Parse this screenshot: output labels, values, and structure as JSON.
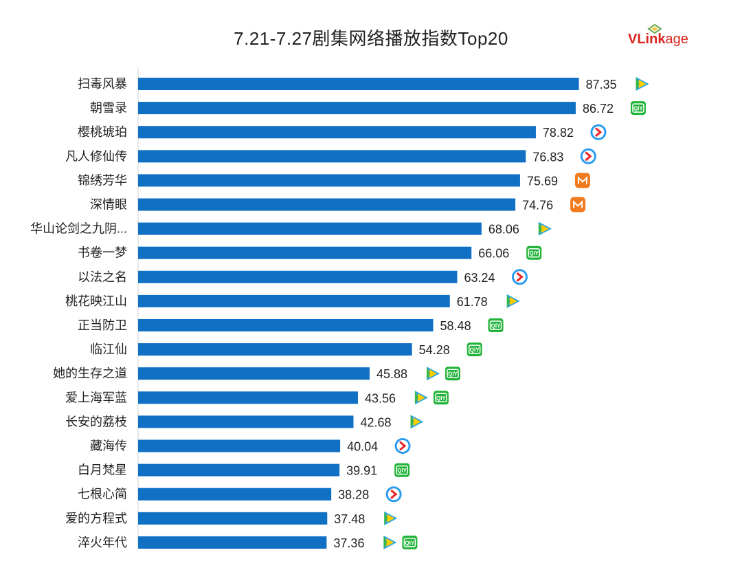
{
  "title": "7.21-7.27剧集网络播放指数Top20",
  "logo": {
    "text_v": "VLink",
    "text_age": "age"
  },
  "colors": {
    "bar": "#1070c4",
    "axis": "#d0d0d0"
  },
  "platform_icons": {
    "tencent": "tencent-video-icon",
    "iqiyi": "iqiyi-icon",
    "youku": "youku-icon",
    "mango": "mango-tv-icon"
  },
  "chart_data": {
    "type": "bar",
    "orientation": "horizontal",
    "title": "7.21-7.27剧集网络播放指数Top20",
    "categories": [
      "扫毒风暴",
      "朝雪录",
      "樱桃琥珀",
      "凡人修仙传",
      "锦绣芳华",
      "深情眼",
      "华山论剑之九阴...",
      "书卷一梦",
      "以法之名",
      "桃花映江山",
      "正当防卫",
      "临江仙",
      "她的生存之道",
      "爱上海军蓝",
      "长安的荔枝",
      "藏海传",
      "白月梵星",
      "七根心简",
      "爱的方程式",
      "淬火年代"
    ],
    "values": [
      87.35,
      86.72,
      78.82,
      76.83,
      75.69,
      74.76,
      68.06,
      66.06,
      63.24,
      61.78,
      58.48,
      54.28,
      45.88,
      43.56,
      42.68,
      40.04,
      39.91,
      38.28,
      37.48,
      37.36
    ],
    "value_labels": [
      "87.35",
      "86.72",
      "78.82",
      "76.83",
      "75.69",
      "74.76",
      "68.06",
      "66.06",
      "63.24",
      "61.78",
      "58.48",
      "54.28",
      "45.88",
      "43.56",
      "42.68",
      "40.04",
      "39.91",
      "38.28",
      "37.48",
      "37.36"
    ],
    "platforms": [
      [
        "tencent"
      ],
      [
        "iqiyi"
      ],
      [
        "youku"
      ],
      [
        "youku"
      ],
      [
        "mango"
      ],
      [
        "mango"
      ],
      [
        "tencent"
      ],
      [
        "iqiyi"
      ],
      [
        "youku"
      ],
      [
        "tencent"
      ],
      [
        "iqiyi"
      ],
      [
        "iqiyi"
      ],
      [
        "tencent",
        "iqiyi"
      ],
      [
        "tencent",
        "iqiyi"
      ],
      [
        "tencent"
      ],
      [
        "youku"
      ],
      [
        "iqiyi"
      ],
      [
        "youku"
      ],
      [
        "tencent"
      ],
      [
        "tencent",
        "iqiyi"
      ]
    ],
    "xlim": [
      0,
      100
    ],
    "grid": false,
    "legend": "none"
  }
}
